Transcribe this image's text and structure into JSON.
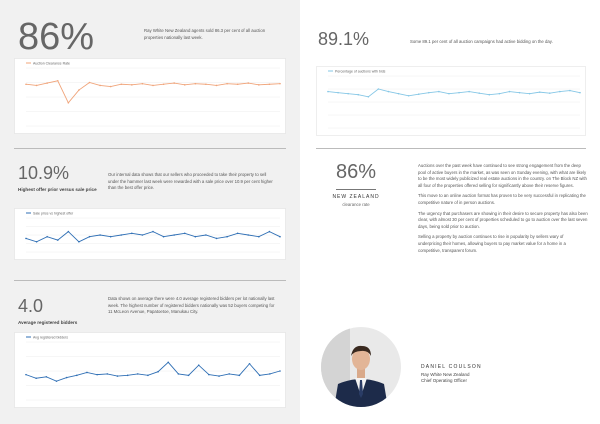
{
  "stat1": {
    "figure": "86%",
    "text": "Ray White New Zealand agents sold 86.3 per cent of all auction properties nationally last week.",
    "chart": {
      "type": "line",
      "legend": "Auction Clearance Rate",
      "color": "#f0a47a",
      "ylim": [
        0,
        100
      ],
      "values": [
        72,
        70,
        74,
        78,
        40,
        62,
        75,
        70,
        68,
        72,
        71,
        73,
        70,
        72,
        74,
        71,
        73,
        72,
        70,
        73,
        72,
        74,
        71,
        72,
        73
      ]
    }
  },
  "stat2": {
    "figure": "89.1%",
    "text": "Some 89.1 per cent of all auction campaigns had active bidding on the day.",
    "chart": {
      "type": "line",
      "legend": "Percentage of auctions with bids",
      "color": "#86c7e6",
      "ylim": [
        0,
        100
      ],
      "values": [
        70,
        68,
        66,
        64,
        60,
        75,
        70,
        66,
        62,
        65,
        68,
        70,
        66,
        68,
        70,
        67,
        64,
        66,
        70,
        68,
        66,
        69,
        67,
        70,
        72,
        68
      ]
    }
  },
  "stat3": {
    "figure": "10.9%",
    "label": "Highest offer prior versus sale price",
    "text": "Our internal data shows that our sellers who proceeded to take their property to sell under the hammer last week were rewarded with a sale price over 10.9 per cent higher than the best offer price.",
    "chart": {
      "type": "line",
      "legend": "Sale price vs highest offer",
      "color": "#2f6fb5",
      "ylim": [
        0,
        20
      ],
      "values": [
        8,
        6,
        9,
        7,
        12,
        6,
        9,
        10,
        9,
        10,
        11,
        10,
        12,
        9,
        10,
        11,
        9,
        10,
        8,
        9,
        11,
        10,
        9,
        12,
        9
      ]
    }
  },
  "stat4": {
    "figure": "4.0",
    "label": "Average registered bidders",
    "text": "Data shows on average there were 4.0 average registered bidders per lot nationally last week. The highest number of registered bidders nationally was 52 buyers competing for 11 McLeon Avenue, Papatoetoe, Manukau City.",
    "chart": {
      "type": "line",
      "legend": "Avg registered bidders",
      "color": "#2f6fb5",
      "ylim": [
        0,
        8
      ],
      "values": [
        3.5,
        3,
        3.2,
        2.6,
        3.1,
        3.4,
        3.8,
        3.5,
        3.6,
        3.3,
        3.4,
        3.6,
        3.4,
        3.9,
        5.2,
        3.6,
        3.4,
        4.8,
        3.5,
        3.3,
        3.6,
        3.4,
        5.0,
        3.4,
        3.6,
        4.0
      ]
    }
  },
  "highlight": {
    "figure": "86%",
    "region": "NEW ZEALAND",
    "caption": "clearance rate"
  },
  "article": {
    "paragraphs": [
      "Auctions over the past week have continued to see strong engagement from the deep pool of active buyers in the market, as was seen on Sunday evening, with what are likely to be the most widely publicized real estate auctions in the country. on The Block NZ with all four of the properties offered selling for significantly above their reserve figures.",
      "This move to an online auction format has proven to be very successful in replicating the competitive nature of in person auctions.",
      "The urgency that purchasers are showing in their desire to secure property has also been clear, with almost 30 per cent of properties scheduled to go to auction over the last seven days, being sold prior to auction.",
      "Selling a property by auction continues to rise in popularity by sellers wary of underpricing their homes, allowing buyers to pay market value for a home in a competitive, transparent forum."
    ]
  },
  "author": {
    "name": "DANIEL COULSON",
    "company": "Ray White New Zealand",
    "role": "Chief Operating Officer"
  }
}
